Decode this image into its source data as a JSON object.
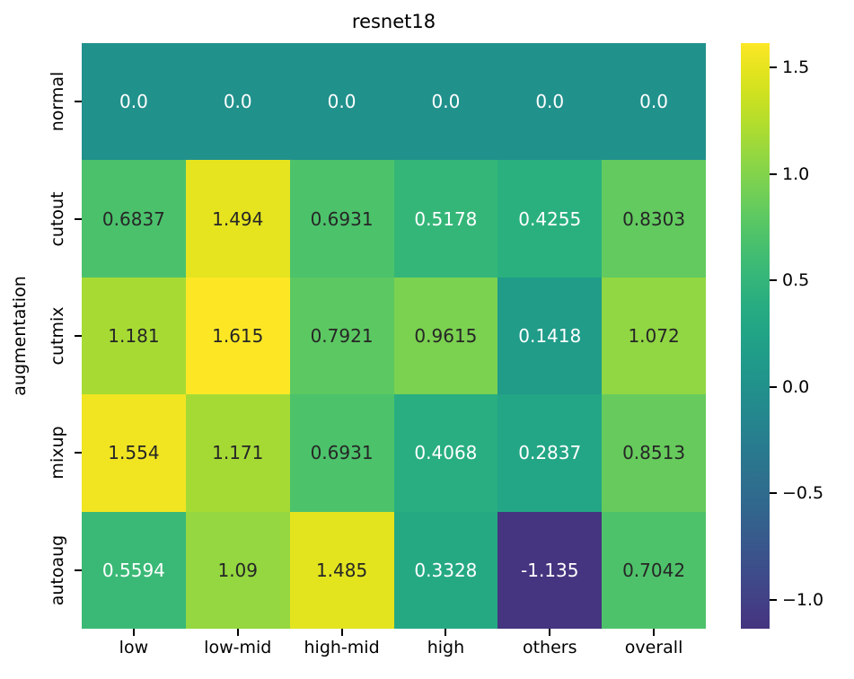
{
  "title": "resnet18",
  "ylabel": "augmentation",
  "colors": {
    "background": "#ffffff",
    "annotation_dark": "#262626",
    "annotation_light": "#ffffff",
    "tick_color": "#000000",
    "colormap_min_hex": "#453481",
    "colormap_zero_hex": "#21918c",
    "colormap_max_hex": "#fde725"
  },
  "chart_data": {
    "type": "heatmap",
    "title": "resnet18",
    "xlabel": "",
    "ylabel": "augmentation",
    "rows": [
      "normal",
      "cutout",
      "cutmix",
      "mixup",
      "autoaug"
    ],
    "columns": [
      "low",
      "low-mid",
      "high-mid",
      "high",
      "others",
      "overall"
    ],
    "values": [
      [
        0.0,
        0.0,
        0.0,
        0.0,
        0.0,
        0.0
      ],
      [
        0.6837,
        1.494,
        0.6931,
        0.5178,
        0.4255,
        0.8303
      ],
      [
        1.181,
        1.615,
        0.7921,
        0.9615,
        0.1418,
        1.072
      ],
      [
        1.554,
        1.171,
        0.6931,
        0.4068,
        0.2837,
        0.8513
      ],
      [
        0.5594,
        1.09,
        1.485,
        0.3328,
        -1.135,
        0.7042
      ]
    ],
    "cell_labels": [
      [
        "0.0",
        "0.0",
        "0.0",
        "0.0",
        "0.0",
        "0.0"
      ],
      [
        "0.6837",
        "1.494",
        "0.6931",
        "0.5178",
        "0.4255",
        "0.8303"
      ],
      [
        "1.181",
        "1.615",
        "0.7921",
        "0.9615",
        "0.1418",
        "1.072"
      ],
      [
        "1.554",
        "1.171",
        "0.6931",
        "0.4068",
        "0.2837",
        "0.8513"
      ],
      [
        "0.5594",
        "1.09",
        "1.485",
        "0.3328",
        "-1.135",
        "0.7042"
      ]
    ],
    "colormap": "viridis",
    "center": 0,
    "vmin": -1.135,
    "vmax": 1.615,
    "grid": false,
    "legend_position": "right-colorbar",
    "colorbar": {
      "tick_labels": [
        "1.5",
        "1.0",
        "0.5",
        "0.0",
        "−0.5",
        "−1.0"
      ],
      "tick_values": [
        1.5,
        1.0,
        0.5,
        0.0,
        -0.5,
        -1.0
      ]
    }
  }
}
